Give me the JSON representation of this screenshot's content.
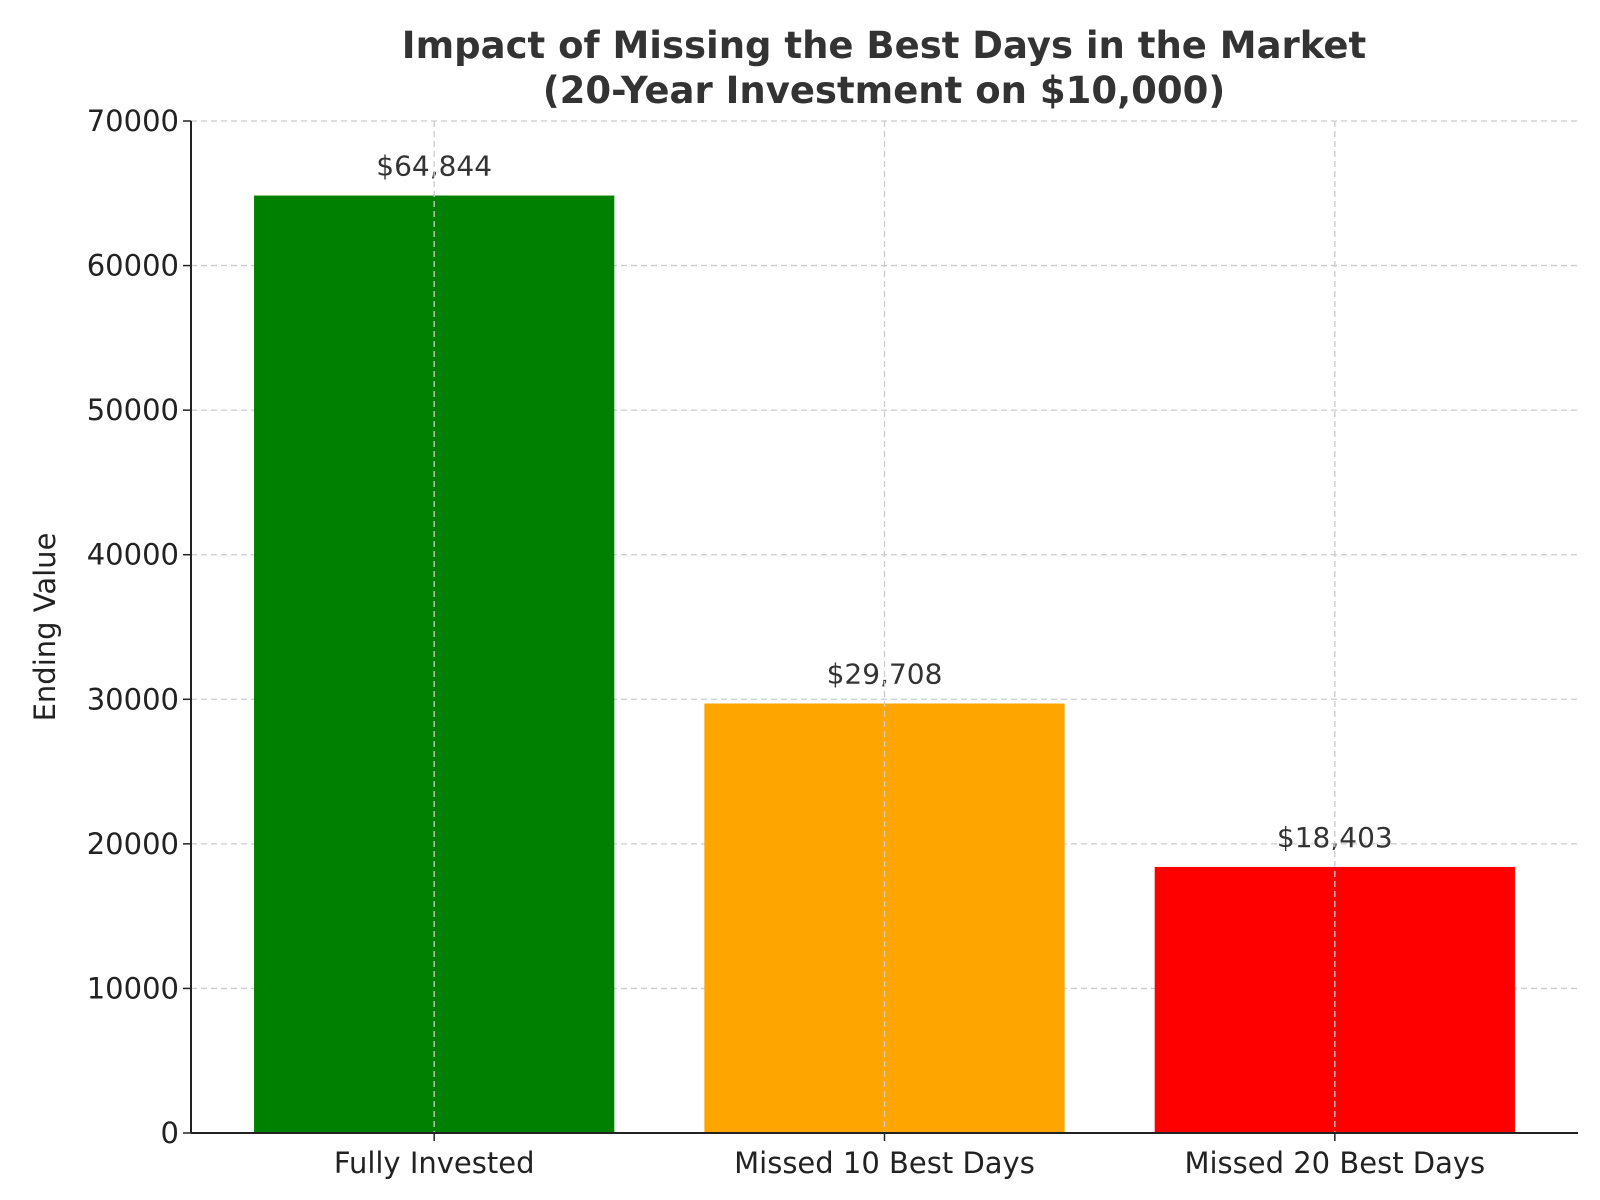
{
  "chart_data": {
    "type": "bar",
    "title": [
      "Impact of Missing the Best Days in the Market",
      "(20-Year Investment on $10,000)"
    ],
    "ylabel": "Ending Value",
    "categories": [
      "Fully Invested",
      "Missed 10 Best Days",
      "Missed 20 Best Days"
    ],
    "values": [
      64844,
      29708,
      18403
    ],
    "value_labels": [
      "$64,844",
      "$29,708",
      "$18,403"
    ],
    "colors": [
      "#008000",
      "#ffa500",
      "#ff0000"
    ],
    "ylim": [
      0,
      70000
    ],
    "yticks": [
      0,
      10000,
      20000,
      30000,
      40000,
      50000,
      60000,
      70000
    ],
    "grid": true
  }
}
